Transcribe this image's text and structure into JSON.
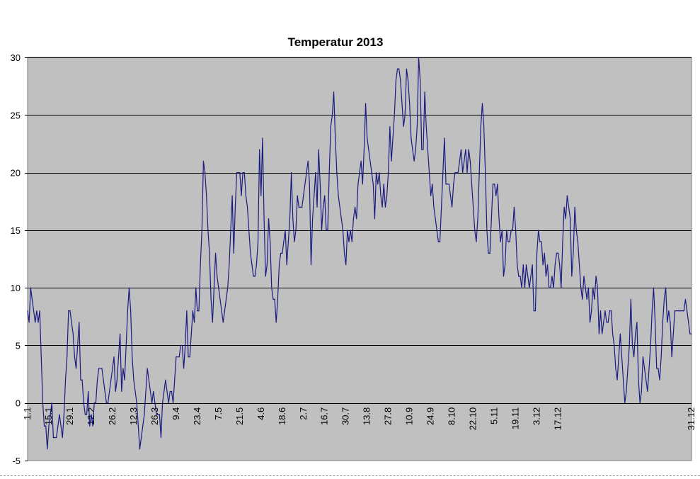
{
  "chart_data": {
    "type": "line",
    "title": "Temperatur 2013",
    "xlabel": "",
    "ylabel": "",
    "ylim": [
      -5,
      30
    ],
    "yticks": [
      -5,
      0,
      5,
      10,
      15,
      20,
      25,
      30
    ],
    "grid": true,
    "legend": "none",
    "colors": {
      "line": "#1a1a80",
      "plot_bg": "#c0c0c0",
      "grid": "#000000"
    },
    "x_tick_labels": [
      "1.1",
      "15.1",
      "29.1",
      "12.2",
      "26.2",
      "12.3",
      "26.3",
      "9.4",
      "23.4",
      "7.5",
      "21.5",
      "4.6",
      "18.6",
      "2.7",
      "16.7",
      "30.7",
      "13.8",
      "27.8",
      "10.9",
      "24.9",
      "8.10",
      "22.10",
      "5.11",
      "19.11",
      "3.12",
      "17.12",
      "31.12"
    ],
    "series": [
      {
        "values": [
          8,
          7,
          10,
          9,
          8,
          7,
          8,
          7,
          8,
          4,
          0,
          -2,
          -2,
          -4,
          -2,
          -1,
          0,
          -3,
          -3,
          -3,
          -2,
          -1,
          -2,
          -3,
          -1,
          2,
          4,
          8,
          8,
          7,
          6,
          4,
          3,
          5,
          7,
          2,
          2,
          0,
          -1,
          -1,
          1,
          -2,
          -1,
          -2,
          0,
          0,
          2,
          3,
          3,
          3,
          2,
          1,
          0,
          0,
          1,
          2,
          3,
          4,
          1,
          2,
          4,
          6,
          1,
          3,
          2,
          5,
          8,
          10,
          8,
          4,
          2,
          1,
          0,
          -2,
          -4,
          -3,
          -2,
          -1,
          1,
          3,
          2,
          1,
          0,
          1,
          0,
          -1,
          -1,
          -1,
          -3,
          0,
          1,
          2,
          1,
          0,
          1,
          1,
          0,
          2,
          4,
          4,
          4,
          5,
          5,
          3,
          5,
          8,
          4,
          4,
          6,
          8,
          7,
          10,
          8,
          8,
          12,
          15,
          21,
          20,
          18,
          15,
          13,
          9,
          7,
          10,
          13,
          11,
          10,
          9,
          8,
          7,
          8,
          9,
          10,
          12,
          15,
          18,
          13,
          17,
          20,
          20,
          20,
          18,
          20,
          20,
          18,
          17,
          15,
          13,
          12,
          11,
          11,
          12,
          14,
          22,
          18,
          23,
          16,
          11,
          12,
          16,
          14,
          10,
          9,
          9,
          7,
          9,
          12,
          13,
          13,
          14,
          15,
          12,
          14,
          16,
          20,
          16,
          14,
          15,
          18,
          17,
          17,
          17,
          18,
          19,
          20,
          21,
          19,
          12,
          16,
          18,
          20,
          17,
          22,
          19,
          15,
          17,
          18,
          15,
          15,
          20,
          24,
          25,
          27,
          23,
          20,
          18,
          17,
          16,
          15,
          13,
          12,
          15,
          14,
          15,
          14,
          16,
          17,
          16,
          19,
          20,
          21,
          19,
          22,
          26,
          23,
          22,
          21,
          20,
          19,
          16,
          20,
          19,
          20,
          18,
          17,
          19,
          17,
          18,
          20,
          24,
          21,
          23,
          25,
          28,
          29,
          29,
          28,
          26,
          24,
          25,
          29,
          28,
          26,
          23,
          22,
          21,
          22,
          24,
          30,
          28,
          22,
          22,
          27,
          24,
          22,
          20,
          18,
          19,
          17,
          16,
          15,
          14,
          14,
          17,
          20,
          23,
          19,
          19,
          19,
          18,
          17,
          19,
          20,
          20,
          20,
          21,
          22,
          20,
          21,
          22,
          20,
          22,
          21,
          19,
          17,
          15,
          14,
          16,
          20,
          24,
          26,
          24,
          20,
          15,
          13,
          13,
          16,
          19,
          19,
          18,
          19,
          16,
          14,
          15,
          11,
          12,
          15,
          14,
          14,
          15,
          15,
          17,
          15,
          12,
          11,
          11,
          10,
          12,
          10,
          12,
          11,
          10,
          11,
          12,
          8,
          8,
          13,
          15,
          14,
          14,
          12,
          13,
          11,
          12,
          10,
          10,
          11,
          10,
          12,
          13,
          13,
          12,
          10,
          14,
          17,
          16,
          18,
          17,
          16,
          11,
          13,
          17,
          15,
          14,
          12,
          10,
          9,
          11,
          10,
          9,
          10,
          7,
          8,
          10,
          9,
          11,
          10,
          6,
          8,
          6,
          7,
          8,
          7,
          7,
          8,
          8,
          6,
          5,
          3,
          2,
          4,
          6,
          4,
          2,
          0,
          1,
          3,
          5,
          9,
          5,
          4,
          6,
          7,
          2,
          0,
          1,
          4,
          3,
          2,
          1,
          3,
          5,
          8,
          10,
          7,
          3,
          3,
          2,
          4,
          7,
          9,
          10,
          7,
          8,
          7,
          4,
          6,
          8,
          8,
          8,
          8,
          8,
          8,
          8,
          9,
          8,
          7,
          6,
          6
        ]
      }
    ]
  }
}
